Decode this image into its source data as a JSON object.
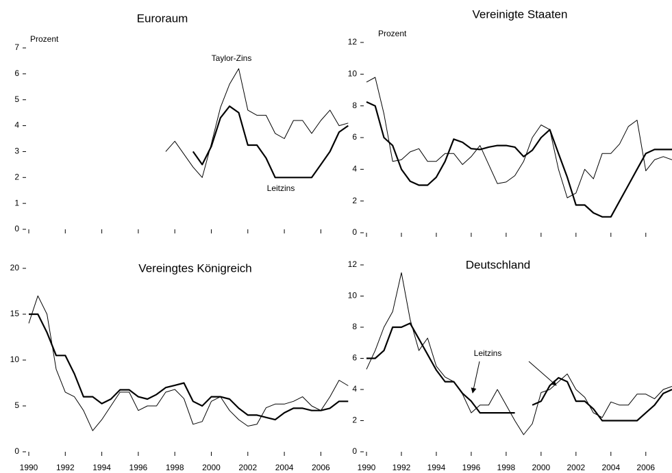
{
  "chart_data": [
    {
      "type": "line",
      "title": "Euroraum",
      "ylabel": "Prozent",
      "annotations": [
        "Taylor-Zins",
        "Leitzins"
      ],
      "x": [
        1990,
        1990.5,
        1991,
        1991.5,
        1992,
        1992.5,
        1993,
        1993.5,
        1994,
        1994.5,
        1995,
        1995.5,
        1996,
        1996.5,
        1997,
        1997.5,
        1998,
        1998.5,
        1999,
        1999.5,
        2000,
        2000.5,
        2001,
        2001.5,
        2002,
        2002.5,
        2003,
        2003.5,
        2004,
        2004.5,
        2005,
        2005.5,
        2006,
        2006.5,
        2007,
        2007.5
      ],
      "series": [
        {
          "color": "#000000",
          "line_width": 1,
          "values": [
            null,
            null,
            null,
            null,
            null,
            null,
            null,
            null,
            null,
            null,
            null,
            null,
            null,
            null,
            null,
            3.0,
            3.4,
            2.9,
            2.4,
            2.0,
            3.3,
            4.7,
            5.6,
            6.2,
            4.6,
            4.4,
            4.4,
            3.7,
            3.5,
            4.2,
            4.2,
            3.7,
            4.2,
            4.6,
            4.0,
            4.1
          ]
        },
        {
          "color": "#000000",
          "line_width": 2.2,
          "values": [
            null,
            null,
            null,
            null,
            null,
            null,
            null,
            null,
            null,
            null,
            null,
            null,
            null,
            null,
            null,
            null,
            null,
            null,
            3.0,
            2.5,
            3.2,
            4.3,
            4.75,
            4.5,
            3.25,
            3.25,
            2.75,
            2.0,
            2.0,
            2.0,
            2.0,
            2.0,
            2.5,
            3.0,
            3.75,
            4.0
          ]
        }
      ],
      "xlim": [
        1990,
        2007.75
      ],
      "xticks": [
        1990,
        1992,
        1994,
        1996,
        1998,
        2000,
        2002,
        2004,
        2006
      ],
      "show_xtick_labels": false,
      "ylim": [
        0,
        7
      ],
      "yticks": [
        0,
        1,
        2,
        3,
        4,
        5,
        6,
        7
      ],
      "grid": false
    },
    {
      "type": "line",
      "title": "Vereinigte Staaten",
      "ylabel": "Prozent",
      "x": [
        1990,
        1990.5,
        1991,
        1991.5,
        1992,
        1992.5,
        1993,
        1993.5,
        1994,
        1994.5,
        1995,
        1995.5,
        1996,
        1996.5,
        1997,
        1997.5,
        1998,
        1998.5,
        1999,
        1999.5,
        2000,
        2000.5,
        2001,
        2001.5,
        2002,
        2002.5,
        2003,
        2003.5,
        2004,
        2004.5,
        2005,
        2005.5,
        2006,
        2006.5,
        2007,
        2007.5
      ],
      "series": [
        {
          "color": "#000000",
          "line_width": 1,
          "values": [
            9.5,
            9.8,
            7.5,
            4.5,
            4.6,
            5.1,
            5.3,
            4.5,
            4.5,
            5.0,
            5.0,
            4.3,
            4.8,
            5.5,
            4.3,
            3.1,
            3.2,
            3.6,
            4.5,
            6.0,
            6.8,
            6.5,
            4.0,
            2.2,
            2.5,
            4.0,
            3.4,
            5.0,
            5.0,
            5.6,
            6.7,
            7.1,
            3.9,
            4.6,
            4.8,
            4.6
          ]
        },
        {
          "color": "#000000",
          "line_width": 2.2,
          "values": [
            8.25,
            8.0,
            6.0,
            5.5,
            4.0,
            3.25,
            3.0,
            3.0,
            3.5,
            4.5,
            5.9,
            5.7,
            5.3,
            5.25,
            5.4,
            5.5,
            5.5,
            5.4,
            4.8,
            5.2,
            6.0,
            6.5,
            5.0,
            3.5,
            1.75,
            1.75,
            1.25,
            1.0,
            1.0,
            2.0,
            3.0,
            4.0,
            5.0,
            5.25,
            5.25,
            5.25
          ]
        }
      ],
      "xlim": [
        1990,
        2007.5
      ],
      "xticks": [
        1990,
        1992,
        1994,
        1996,
        1998,
        2000,
        2002,
        2004,
        2006
      ],
      "show_xtick_labels": false,
      "ylim": [
        0,
        12
      ],
      "yticks": [
        0,
        2,
        4,
        6,
        8,
        10,
        12
      ],
      "grid": false
    },
    {
      "type": "line",
      "title": "Vereingtes Königreich",
      "x": [
        1990,
        1990.5,
        1991,
        1991.5,
        1992,
        1992.5,
        1993,
        1993.5,
        1994,
        1994.5,
        1995,
        1995.5,
        1996,
        1996.5,
        1997,
        1997.5,
        1998,
        1998.5,
        1999,
        1999.5,
        2000,
        2000.5,
        2001,
        2001.5,
        2002,
        2002.5,
        2003,
        2003.5,
        2004,
        2004.5,
        2005,
        2005.5,
        2006,
        2006.5,
        2007,
        2007.5
      ],
      "series": [
        {
          "color": "#000000",
          "line_width": 1,
          "values": [
            14,
            17,
            15,
            9,
            6.5,
            6,
            4.5,
            2.3,
            3.5,
            5,
            6.5,
            6.5,
            4.5,
            5,
            5,
            6.5,
            6.8,
            5.8,
            3,
            3.3,
            5.5,
            6,
            4.5,
            3.5,
            2.8,
            3,
            4.8,
            5.2,
            5.2,
            5.5,
            6,
            5,
            4.5,
            6,
            7.8,
            7.2
          ]
        },
        {
          "color": "#000000",
          "line_width": 2.2,
          "values": [
            15,
            15,
            13,
            10.5,
            10.5,
            8.5,
            6,
            6,
            5.25,
            5.75,
            6.75,
            6.75,
            6,
            5.75,
            6.25,
            7,
            7.25,
            7.5,
            5.5,
            5,
            6,
            6,
            5.75,
            4.75,
            4,
            4,
            3.75,
            3.5,
            4.25,
            4.75,
            4.75,
            4.5,
            4.5,
            4.75,
            5.5,
            5.5
          ]
        }
      ],
      "xlim": [
        1990,
        2007.75
      ],
      "xticks": [
        1990,
        1992,
        1994,
        1996,
        1998,
        2000,
        2002,
        2004,
        2006
      ],
      "show_xtick_labels": true,
      "ylim": [
        0,
        20
      ],
      "yticks": [
        0,
        5,
        10,
        15,
        20
      ],
      "grid": false
    },
    {
      "type": "line",
      "title": "Deutschland",
      "annotations": [
        "Leitzins"
      ],
      "x": [
        1990,
        1990.5,
        1991,
        1991.5,
        1992,
        1992.5,
        1993,
        1993.5,
        1994,
        1994.5,
        1995,
        1995.5,
        1996,
        1996.5,
        1997,
        1997.5,
        1998,
        1998.5,
        1999,
        1999.5,
        2000,
        2000.5,
        2001,
        2001.5,
        2002,
        2002.5,
        2003,
        2003.5,
        2004,
        2004.5,
        2005,
        2005.5,
        2006,
        2006.5,
        2007,
        2007.5
      ],
      "series": [
        {
          "color": "#000000",
          "line_width": 1,
          "values": [
            5.3,
            6.5,
            8,
            9,
            11.5,
            8.5,
            6.5,
            7.3,
            5.5,
            4.8,
            4.5,
            3.7,
            2.5,
            3,
            3,
            4,
            3,
            2,
            1.1,
            1.8,
            3.8,
            4,
            4.5,
            5,
            4,
            3.5,
            2.5,
            2.2,
            3.2,
            3,
            3,
            3.7,
            3.7,
            3.4,
            4,
            4.2
          ]
        },
        {
          "color": "#000000",
          "line_width": 2.2,
          "values": [
            6,
            6,
            6.5,
            8,
            8,
            8.25,
            7.25,
            6.25,
            5.25,
            4.5,
            4.5,
            3.75,
            3.25,
            2.5,
            2.5,
            2.5,
            2.5,
            2.5,
            null,
            3.0,
            3.25,
            4.25,
            4.75,
            4.5,
            3.25,
            3.25,
            2.75,
            2.0,
            2,
            2,
            2,
            2,
            2.5,
            3.0,
            3.75,
            4.0
          ]
        }
      ],
      "xlim": [
        1990,
        2007.5
      ],
      "xticks": [
        1990,
        1992,
        1994,
        1996,
        1998,
        2000,
        2002,
        2004,
        2006
      ],
      "show_xtick_labels": true,
      "ylim": [
        0,
        12
      ],
      "yticks": [
        0,
        2,
        4,
        6,
        8,
        10,
        12
      ],
      "grid": false
    }
  ]
}
